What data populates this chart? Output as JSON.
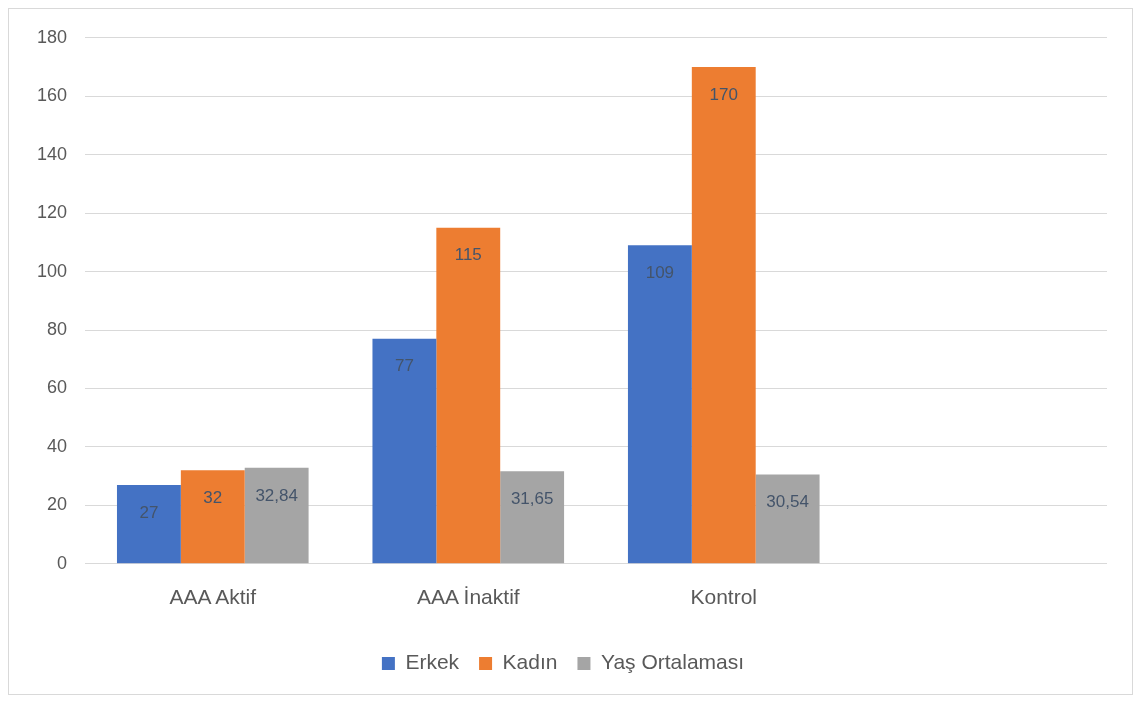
{
  "chart_data": {
    "type": "bar",
    "categories": [
      "AAA Aktif",
      "AAA İnaktif",
      "Kontrol",
      null
    ],
    "series": [
      {
        "name": "Erkek",
        "color": "#4472c4",
        "values": [
          27,
          77,
          109,
          null
        ],
        "value_labels": [
          "27",
          "77",
          "109",
          null
        ]
      },
      {
        "name": "Kadın",
        "color": "#ed7d31",
        "values": [
          32,
          115,
          170,
          null
        ],
        "value_labels": [
          "32",
          "115",
          "170",
          null
        ]
      },
      {
        "name": "Yaş Ortalaması",
        "color": "#a5a5a5",
        "values": [
          32.84,
          31.65,
          30.54,
          null
        ],
        "value_labels": [
          "32,84",
          "31,65",
          "30,54",
          null
        ]
      }
    ],
    "ylim": [
      0,
      180
    ],
    "yticks": [
      0,
      20,
      40,
      60,
      80,
      100,
      120,
      140,
      160,
      180
    ],
    "grid": "y",
    "legend": "bottom"
  }
}
